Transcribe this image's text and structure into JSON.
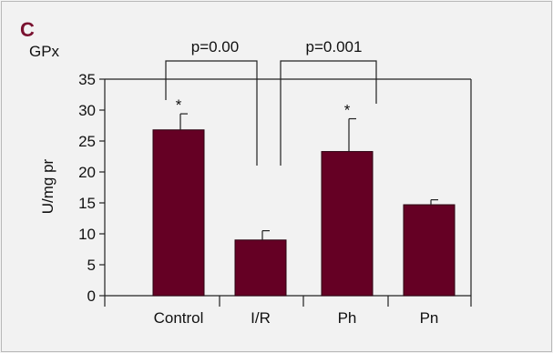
{
  "panel_label": "C",
  "chart_data": {
    "type": "bar",
    "title": "GPx",
    "ylabel": "U/mg pr",
    "xlabel": "",
    "categories": [
      "Control",
      "I/R",
      "Ph",
      "Pn"
    ],
    "values": [
      26.8,
      9.0,
      23.3,
      14.7
    ],
    "errors": [
      2.6,
      1.5,
      5.3,
      0.8
    ],
    "significance_marks": [
      "*",
      "",
      "*",
      ""
    ],
    "ylim": [
      0,
      35
    ],
    "yticks": [
      0,
      5,
      10,
      15,
      20,
      25,
      30,
      35
    ],
    "grid": false,
    "bar_color": "#650024",
    "comparisons": [
      {
        "from": "Control",
        "to": "I/R",
        "label": "p=0.00"
      },
      {
        "from": "I/R",
        "to": "Ph",
        "label": "p=0.001"
      }
    ]
  }
}
